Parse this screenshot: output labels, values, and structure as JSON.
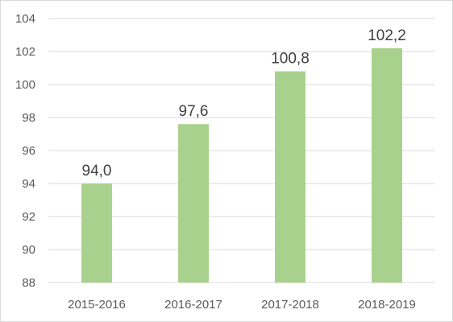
{
  "chart_data": {
    "type": "bar",
    "categories": [
      "2015-2016",
      "2016-2017",
      "2017-2018",
      "2018-2019"
    ],
    "values": [
      94.0,
      97.6,
      100.8,
      102.2
    ],
    "data_labels": [
      "94,0",
      "97,6",
      "100,8",
      "102,2"
    ],
    "yticks": [
      "88",
      "90",
      "92",
      "94",
      "96",
      "98",
      "100",
      "102",
      "104"
    ],
    "ylim": [
      88,
      104
    ],
    "grid": true,
    "legend": "none",
    "colors": {
      "bar": "#a9d18e",
      "grid": "#d9d9d9",
      "tick_text": "#595959",
      "label_text": "#404040"
    }
  }
}
